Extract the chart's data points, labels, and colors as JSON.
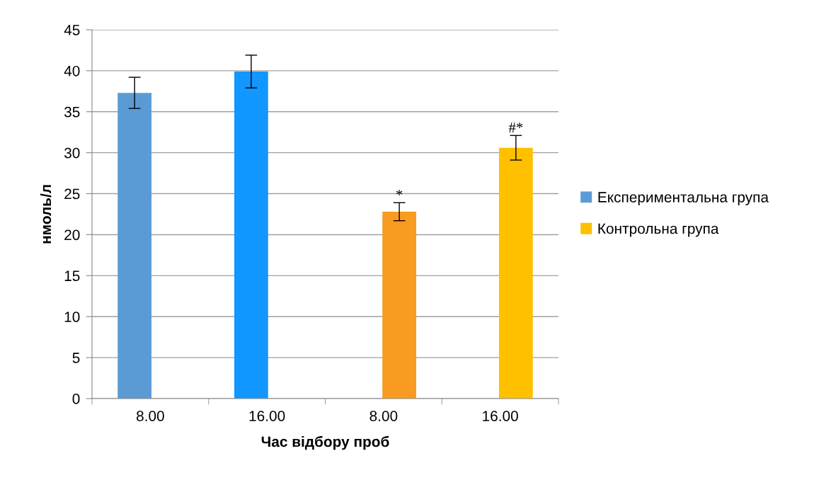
{
  "chart_data": {
    "type": "bar",
    "xlabel": "Час відбору проб",
    "ylabel": "нмоль/л",
    "categories": [
      "8.00",
      "16.00",
      "8.00",
      "16.00"
    ],
    "series": [
      {
        "name": "Експериментальна група",
        "color": "#5b9bd5",
        "colors": [
          "#5b9bd5",
          "#1296ff",
          null,
          null
        ],
        "values": [
          37.3,
          39.9,
          null,
          null
        ],
        "errors": [
          1.9,
          2.0,
          null,
          null
        ]
      },
      {
        "name": "Контрольна група",
        "color": "#ffc000",
        "colors": [
          null,
          null,
          "#f89b20",
          "#ffc000"
        ],
        "values": [
          null,
          null,
          22.8,
          30.6
        ],
        "errors": [
          null,
          null,
          1.1,
          1.5
        ],
        "value_labels": [
          null,
          null,
          "*",
          "#*"
        ]
      }
    ],
    "ylim": [
      0,
      45
    ],
    "yticks": [
      0,
      5,
      10,
      15,
      20,
      25,
      30,
      35,
      40,
      45
    ],
    "grid": "y",
    "legend": "right"
  }
}
